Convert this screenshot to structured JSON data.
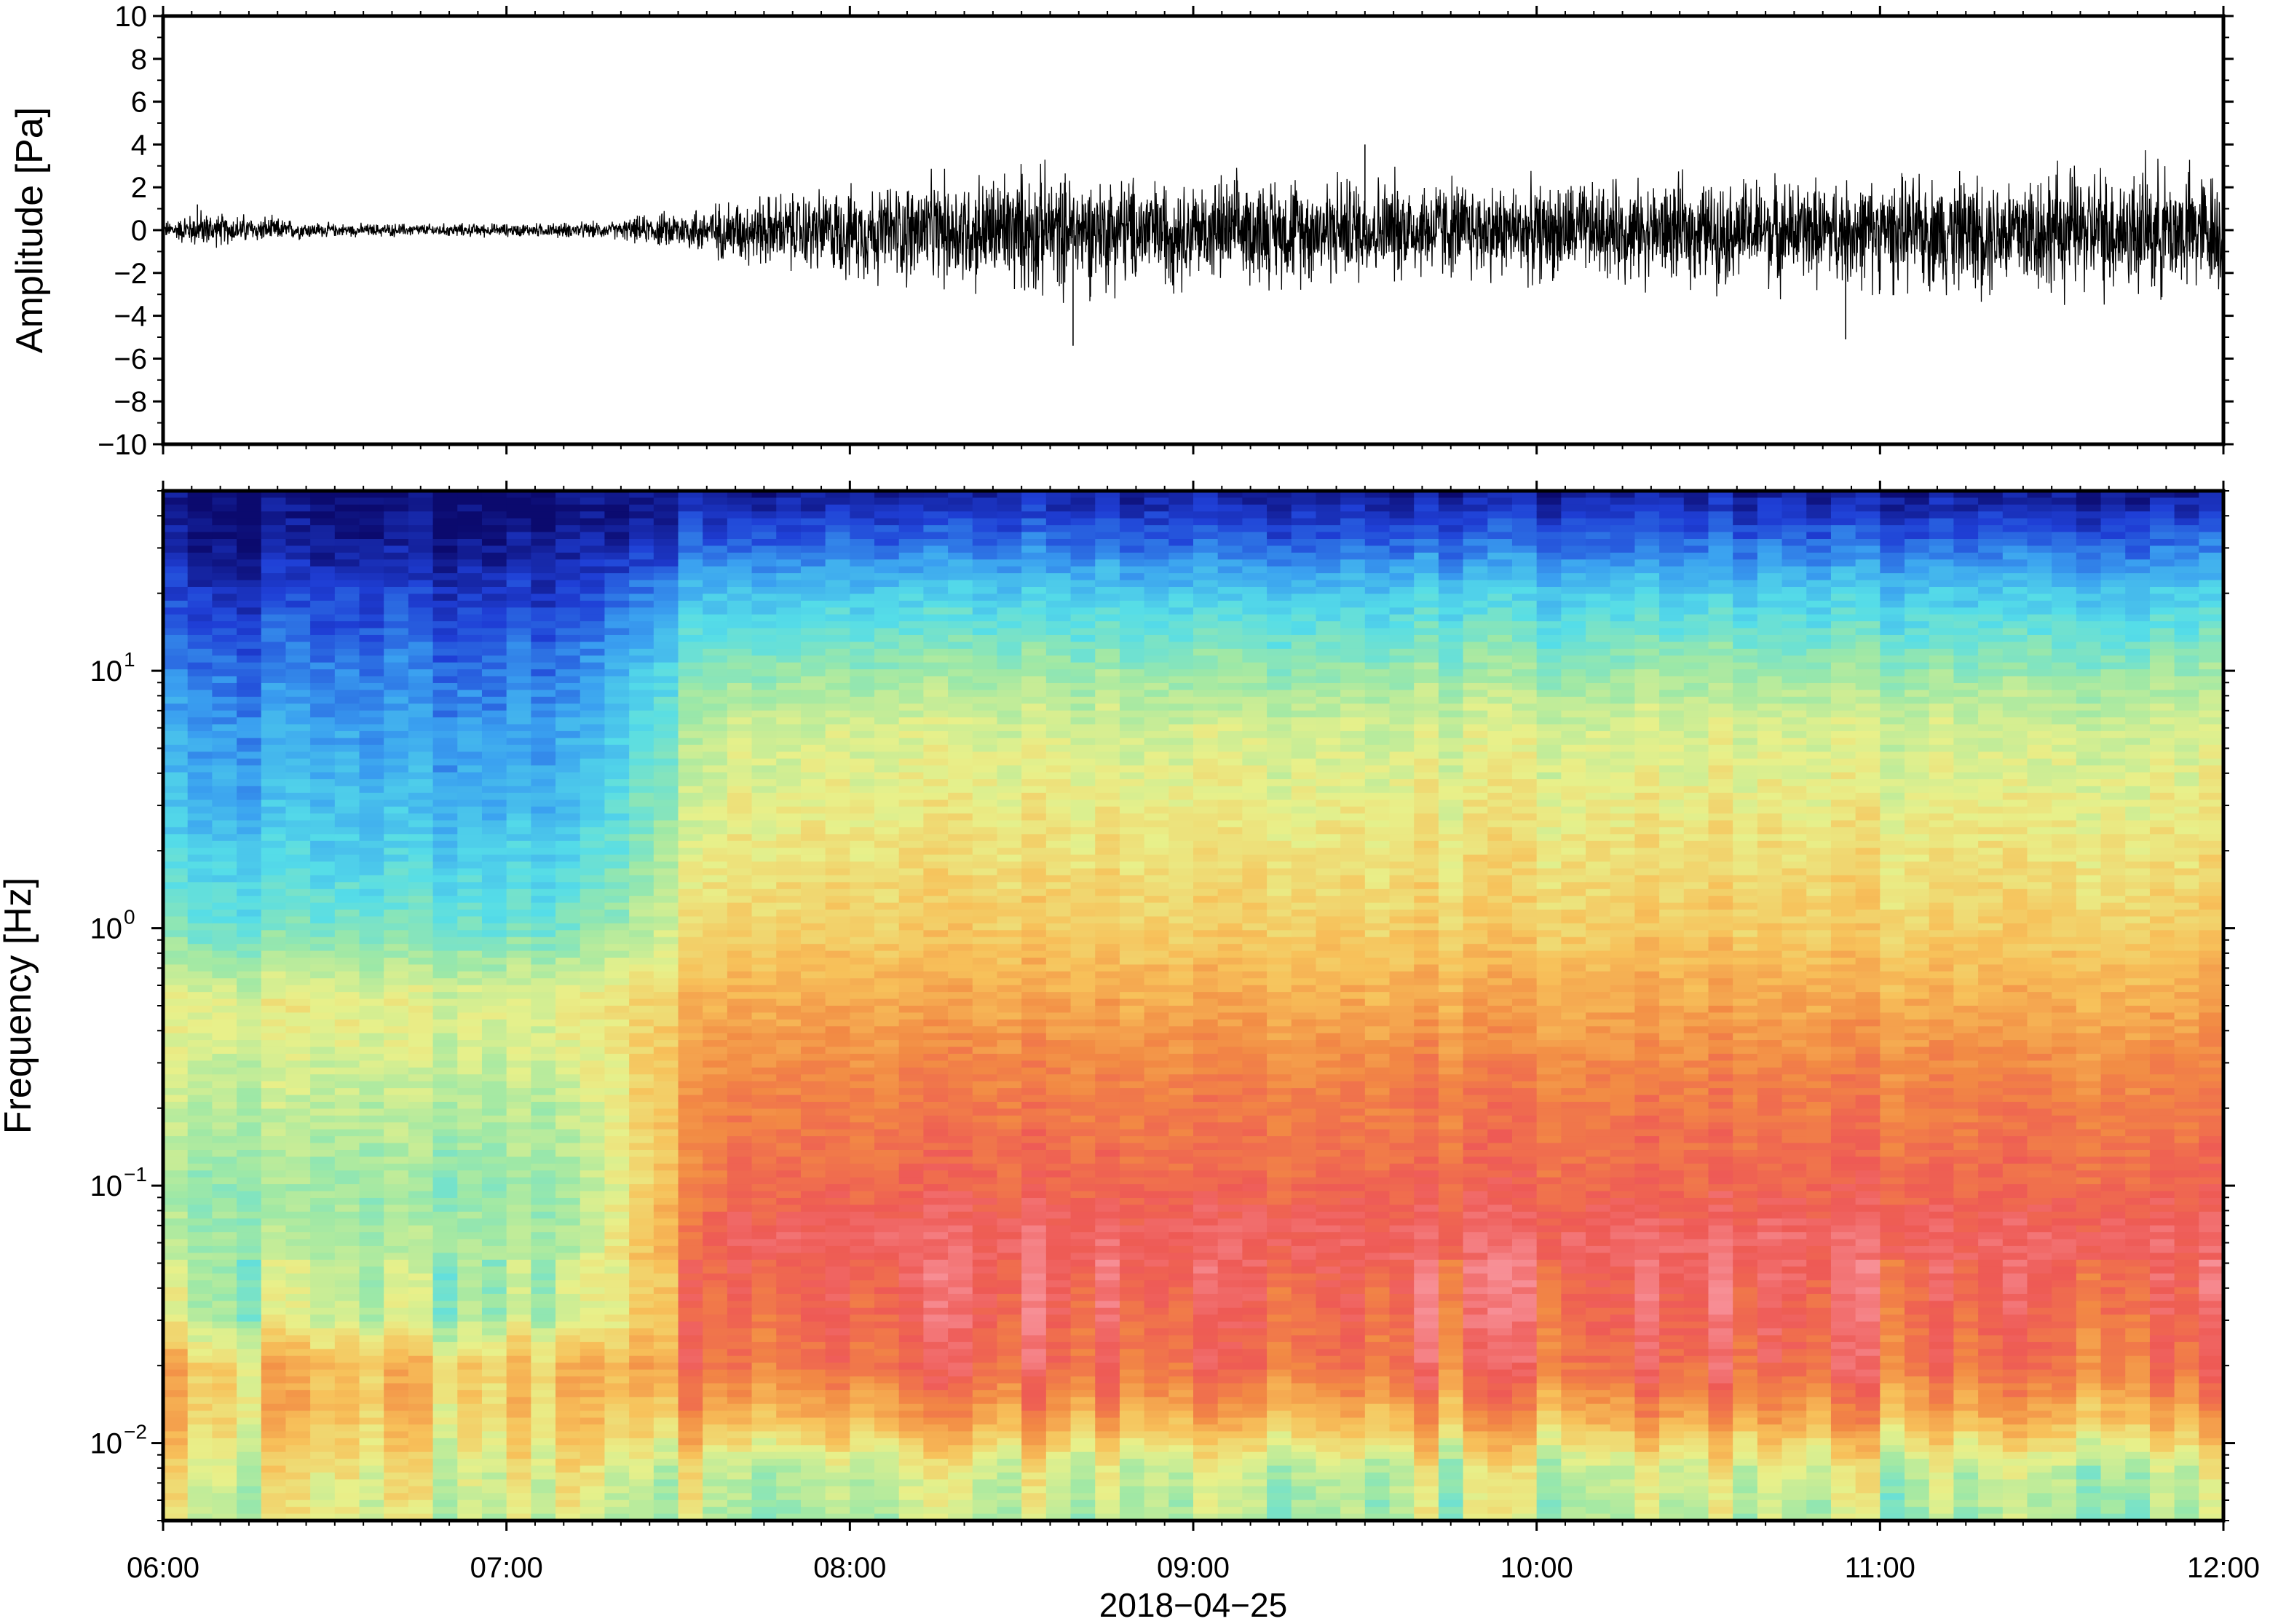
{
  "chart_data": [
    {
      "type": "line",
      "panel": "waveform",
      "ylabel": "Amplitude [Pa]",
      "ylim": [
        -10,
        10
      ],
      "yticks": [
        -10,
        -8,
        -6,
        -4,
        -2,
        0,
        2,
        4,
        6,
        8,
        10
      ],
      "ytick_labels": [
        "−10",
        "−8",
        "−6",
        "−4",
        "−2",
        "0",
        "2",
        "4",
        "6",
        "8",
        "10"
      ],
      "xlim": [
        "06:00",
        "12:00"
      ],
      "envelope": {
        "hours": [
          6.0,
          6.1,
          6.5,
          7.0,
          7.3,
          7.5,
          7.7,
          8.0,
          8.5,
          9.0,
          9.5,
          10.0,
          10.5,
          11.0,
          11.5,
          12.0
        ],
        "max": [
          0.5,
          1.2,
          0.4,
          0.4,
          0.5,
          1.2,
          2.0,
          2.5,
          3.8,
          3.0,
          3.5,
          2.8,
          3.0,
          3.0,
          3.8,
          3.8
        ],
        "min": [
          -0.5,
          -1.0,
          -0.4,
          -0.4,
          -0.5,
          -1.2,
          -2.0,
          -3.0,
          -3.8,
          -3.2,
          -3.0,
          -3.0,
          -3.2,
          -3.5,
          -4.0,
          -3.8
        ]
      },
      "spikes": [
        {
          "hour": 6.1,
          "value": 1.2
        },
        {
          "hour": 8.65,
          "value": -5.4
        },
        {
          "hour": 9.5,
          "value": 4.0
        },
        {
          "hour": 10.9,
          "value": -5.1
        }
      ],
      "grid": false
    },
    {
      "type": "heatmap",
      "panel": "spectrogram",
      "ylabel": "Frequency [Hz]",
      "yscale": "log",
      "ylim": [
        0.005,
        50
      ],
      "yticks": [
        0.01,
        0.1,
        1,
        10
      ],
      "ytick_labels": [
        {
          "base": "10",
          "exp": "−2"
        },
        {
          "base": "10",
          "exp": "−1"
        },
        {
          "base": "10",
          "exp": "0"
        },
        {
          "base": "10",
          "exp": "1"
        }
      ],
      "xlim": [
        "06:00",
        "12:00"
      ],
      "colormap": "rainbow (blue low → pink high)",
      "description_profile_quiet_before_0720": "high frequencies deep blue, mid frequencies cyan/green, low frequencies yellow/orange",
      "description_profile_active_after_0730": "high frequencies blue/cyan, 1–10 Hz yellow, 0.05–1 Hz red/pink, below 0.02 Hz green/yellow",
      "grid": false
    }
  ],
  "xaxis": {
    "ticks": [
      "06:00",
      "07:00",
      "08:00",
      "09:00",
      "10:00",
      "11:00",
      "12:00"
    ],
    "tick_hours": [
      6,
      7,
      8,
      9,
      10,
      11,
      12
    ],
    "date": "2018−04−25"
  },
  "colors": {
    "waveform": "#000000",
    "frame": "#000000",
    "colormap": [
      "#0b0a6e",
      "#1f3fd6",
      "#3aa0f0",
      "#55dde8",
      "#9ee8a6",
      "#e8f08a",
      "#f7c15a",
      "#f28a44",
      "#ee5a55",
      "#f78f96"
    ]
  }
}
